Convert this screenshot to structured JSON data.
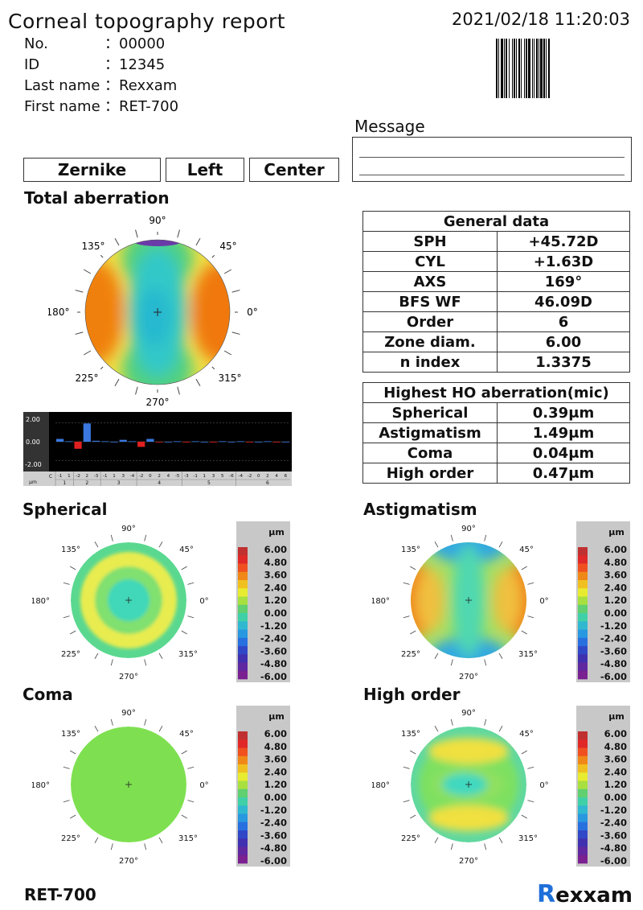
{
  "header": {
    "title": "Corneal topography report",
    "datetime": "2021/02/18 11:20:03"
  },
  "patient": [
    {
      "label": "No.",
      "value": "：00000"
    },
    {
      "label": "ID",
      "value": "：12345"
    },
    {
      "label": "Last name",
      "value": "：Rexxam"
    },
    {
      "label": "First name",
      "value": "：RET-700"
    }
  ],
  "message": {
    "label": "Message"
  },
  "modes": [
    "Zernike",
    "Left",
    "Center"
  ],
  "total": {
    "title": "Total aberration",
    "angles": {
      "a90": "90°",
      "a135": "135°",
      "a45": "45°",
      "a180": "180°",
      "a0": "0°",
      "a225": "225°",
      "a315": "315°",
      "a270": "270°"
    }
  },
  "general": {
    "header": "General data",
    "rows": [
      {
        "k": "SPH",
        "v": "+45.72D"
      },
      {
        "k": "CYL",
        "v": "+1.63D"
      },
      {
        "k": "AXS",
        "v": "169°"
      },
      {
        "k": "BFS WF",
        "v": "46.09D"
      },
      {
        "k": "Order",
        "v": "6"
      },
      {
        "k": "Zone diam.",
        "v": "6.00"
      },
      {
        "k": "n index",
        "v": "1.3375"
      }
    ]
  },
  "highest": {
    "header": "Highest HO aberration(mic)",
    "rows": [
      {
        "k": "Spherical",
        "v": "0.39μm"
      },
      {
        "k": "Astigmatism",
        "v": "1.49μm"
      },
      {
        "k": "Coma",
        "v": "0.04μm"
      },
      {
        "k": "High order",
        "v": "0.47μm"
      }
    ]
  },
  "chart_data": {
    "type": "bar",
    "ylim": [
      -3,
      3
    ],
    "yticks": [
      "2.00",
      "0.00",
      "-2.00"
    ],
    "unit": "μm",
    "c_label": "C",
    "m_labels": [
      "-1",
      "1",
      "-2",
      "2",
      "-3",
      "-1",
      "1",
      "3",
      "-4",
      "-2",
      "0",
      "2",
      "4",
      "-5",
      "-3",
      "-1",
      "1",
      "3",
      "5",
      "-6",
      "-4",
      "-2",
      "0",
      "2",
      "4",
      "6"
    ],
    "n_groups": [
      {
        "n": "1",
        "count": 2
      },
      {
        "n": "2",
        "count": 3
      },
      {
        "n": "3",
        "count": 4
      },
      {
        "n": "4",
        "count": 5
      },
      {
        "n": "5",
        "count": 6
      },
      {
        "n": "6",
        "count": 7
      }
    ],
    "values": [
      0.3,
      0.05,
      -0.75,
      1.95,
      0.1,
      0.05,
      0.0,
      0.2,
      0.05,
      -0.55,
      0.3,
      -0.05,
      0.0,
      0.05,
      -0.05,
      0.05,
      0.0,
      -0.05,
      0.05,
      0.0,
      0.05,
      -0.05,
      0.0,
      0.05,
      -0.05,
      0.0
    ],
    "positive_color": "#3a78e0",
    "negative_color": "#e02020"
  },
  "maps": [
    {
      "title": "Spherical"
    },
    {
      "title": "Astigmatism"
    },
    {
      "title": "Coma"
    },
    {
      "title": "High order"
    }
  ],
  "map_angles": {
    "a90": "90°",
    "a135": "135°",
    "a45": "45°",
    "a180": "180°",
    "a0": "0°",
    "a225": "225°",
    "a315": "315°",
    "a270": "270°"
  },
  "scale": {
    "unit": "μm",
    "values": [
      "6.00",
      "4.80",
      "3.60",
      "2.40",
      "1.20",
      "0.00",
      "-1.20",
      "-2.40",
      "-3.60",
      "-4.80",
      "-6.00"
    ]
  },
  "footer": {
    "model": "RET-700",
    "brand_r": "R",
    "brand_rest": "exxam",
    "brand_color": "#1e6fd9"
  }
}
